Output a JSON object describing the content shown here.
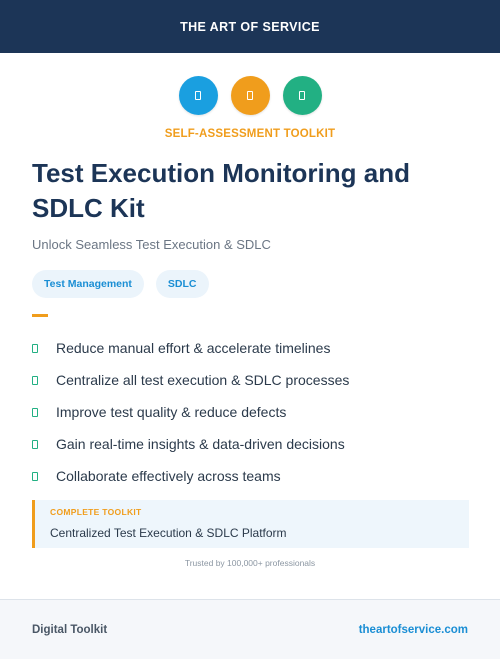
{
  "header": {
    "brand": "THE ART OF SERVICE"
  },
  "icons": [
    {
      "name": "document-icon",
      "color": "#1a9fe0"
    },
    {
      "name": "document-icon",
      "color": "#f09d1c"
    },
    {
      "name": "document-icon",
      "color": "#22b083"
    }
  ],
  "kicker": "SELF-ASSESSMENT TOOLKIT",
  "title": "Test Execution Monitoring and SDLC Kit",
  "subtitle": "Unlock Seamless Test Execution & SDLC",
  "tags": [
    "Test Management",
    "SDLC"
  ],
  "features": [
    "Reduce manual effort & accelerate timelines",
    "Centralize all test execution & SDLC processes",
    "Improve test quality & reduce defects",
    "Gain real-time insights & data-driven decisions",
    "Collaborate effectively across teams"
  ],
  "callout": {
    "label": "COMPLETE TOOLKIT",
    "text": "Centralized Test Execution & SDLC Platform"
  },
  "trusted": "Trusted by 100,000+ professionals",
  "footer": {
    "left": "Digital Toolkit",
    "right": "theartofservice.com"
  },
  "colors": {
    "navy": "#1c3557",
    "orange": "#f09d1c",
    "blue": "#1a8ed4",
    "green": "#22b083"
  }
}
